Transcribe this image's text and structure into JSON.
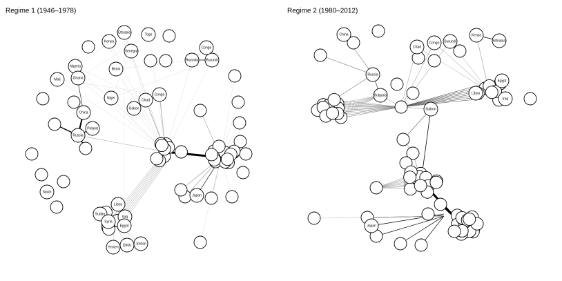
{
  "panels": [
    {
      "title": "Regime 1 (1946–1978)",
      "nodes": [
        "Ethiopia",
        "Togo",
        "Kenya",
        "Senegal",
        "Nigeria",
        "Mali",
        "Ghana",
        "Benin",
        "Niger",
        "Chad",
        "Congo",
        "Gabon",
        "Rwanda",
        "Burundi",
        "Congo",
        "China",
        "Russia",
        "Poland",
        "Libya",
        "Sudan",
        "Syria",
        "Iraq",
        "Egypt",
        "Qatar",
        "Yemen",
        "Jordan",
        "Japan",
        "Spain"
      ]
    },
    {
      "title": "Regime 2 (1980–2012)",
      "nodes": [
        "China",
        "Kenya",
        "Chad",
        "Congo",
        "Burundi",
        "Ethiopia",
        "Russia",
        "Bulgaria",
        "Gabon",
        "Libya",
        "Egypt",
        "Iraq",
        "Japan"
      ]
    }
  ]
}
